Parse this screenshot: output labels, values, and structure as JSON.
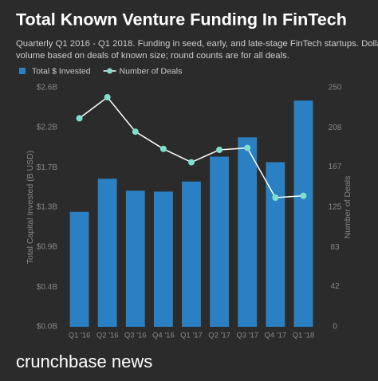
{
  "chart_data": {
    "type": "bar_line",
    "title": "Total Known Venture Funding In FinTech",
    "subtitle": [
      "Quarterly Q1 2016 - Q1 2018. Funding in seed, early, and late-stage FinTech startups. Dollar",
      "volume based on deals of known size; round counts are for all deals."
    ],
    "y_label": "Total Capital Invested (B USD)",
    "y2_label": "Number of Deals",
    "footer": "crunchbase news",
    "categories": [
      "Q1 '16",
      "Q2 '16",
      "Q3 '16",
      "Q4 '16",
      "Q1 '17",
      "Q2 '17",
      "Q3 '17",
      "Q4 '17",
      "Q1 '18"
    ],
    "series": [
      {
        "name": "Total $ Invested",
        "color": "#2a80c2",
        "kind": "bar",
        "values": [
          1.25,
          1.61,
          1.48,
          1.47,
          1.58,
          1.85,
          2.06,
          1.79,
          2.46
        ]
      },
      {
        "name": "Number of Deals",
        "color": "#7fe0cf",
        "kind": "line",
        "axis": "y2",
        "values": [
          218,
          240,
          204,
          186,
          172,
          185,
          187,
          135,
          137
        ]
      }
    ],
    "ylim": [
      0,
      2.6
    ],
    "yticks": [
      {
        "value": 0,
        "label": "$0.0B"
      },
      {
        "value": 0.43,
        "label": "$0.4B"
      },
      {
        "value": 0.87,
        "label": "$0.9B"
      },
      {
        "value": 1.3,
        "label": "$1.3B"
      },
      {
        "value": 1.73,
        "label": "$1.7B"
      },
      {
        "value": 2.17,
        "label": "$2.2B"
      },
      {
        "value": 2.6,
        "label": "$2.6B"
      }
    ],
    "y2lim": [
      0,
      250
    ],
    "y2ticks": [
      0,
      42,
      83,
      125,
      167,
      208,
      250
    ],
    "grid": false
  }
}
